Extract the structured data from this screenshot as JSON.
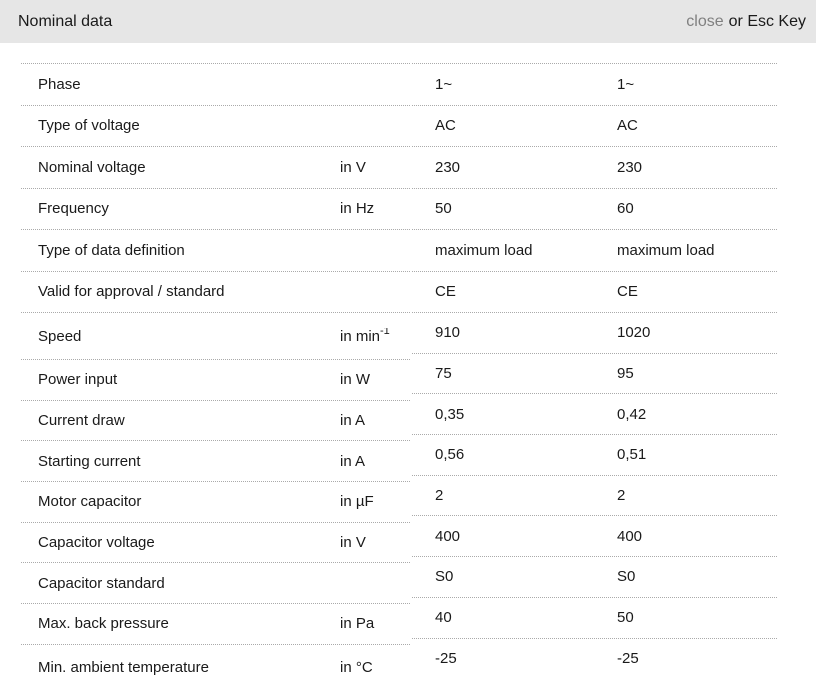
{
  "header": {
    "title": "Nominal data",
    "close_link": "close",
    "close_rest": "or Esc Key"
  },
  "table": {
    "rows": [
      {
        "label": "Phase",
        "unit": "",
        "values": [
          "1~",
          "1~"
        ]
      },
      {
        "label": "Type of voltage",
        "unit": "",
        "values": [
          "AC",
          "AC"
        ]
      },
      {
        "label": "Nominal voltage",
        "unit": "in V",
        "values": [
          "230",
          "230"
        ]
      },
      {
        "label": "Frequency",
        "unit": "in Hz",
        "values": [
          "50",
          "60"
        ]
      },
      {
        "label": "Type of data definition",
        "unit": "",
        "values": [
          "maximum load",
          "maximum load"
        ]
      },
      {
        "label": "Valid for approval / standard",
        "unit": "",
        "values": [
          "CE",
          "CE"
        ]
      },
      {
        "label": "Speed",
        "unit": "in min",
        "unit_sup": "-1",
        "values": [
          "910",
          "1020"
        ]
      },
      {
        "label": "Power input",
        "unit": "in W",
        "values": [
          "75",
          "95"
        ]
      },
      {
        "label": "Current draw",
        "unit": "in A",
        "values": [
          "0,35",
          "0,42"
        ]
      },
      {
        "label": "Starting current",
        "unit": "in A",
        "values": [
          "0,56",
          "0,51"
        ]
      },
      {
        "label": "Motor capacitor",
        "unit": "in µF",
        "values": [
          "2",
          "2"
        ]
      },
      {
        "label": "Capacitor voltage",
        "unit": "in V",
        "values": [
          "400",
          "400"
        ]
      },
      {
        "label": "Capacitor standard",
        "unit": "",
        "values": [
          "S0",
          "S0"
        ]
      },
      {
        "label": "Max. back pressure",
        "unit": "in Pa",
        "values": [
          "40",
          "50"
        ]
      },
      {
        "label": "Min. ambient temperature",
        "unit": "in °C",
        "values": [
          "-25",
          "-25"
        ]
      }
    ]
  },
  "colors": {
    "header_bg": "#e6e6e6",
    "text": "#1a1a1a",
    "close_link": "#808080",
    "row_border": "#aaaaaa",
    "background": "#ffffff"
  }
}
